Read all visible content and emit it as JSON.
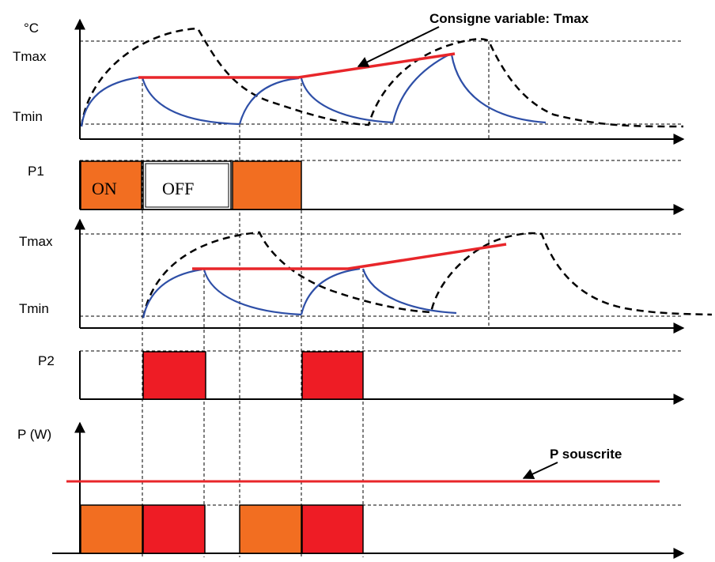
{
  "colors": {
    "on_block": "#f26e21",
    "p2_block": "#ee1c25",
    "temperature_curve": "#2e4fa7",
    "setpoint_line": "#e8262a",
    "off_block": "#ffffff"
  },
  "panel1": {
    "unit": "°C",
    "tmax_label": "Tmax",
    "tmin_label": "Tmin",
    "callout": "Consigne variable: Tmax"
  },
  "p1": {
    "label": "P1",
    "on_label": "ON",
    "off_label": "OFF"
  },
  "panel2": {
    "tmax_label": "Tmax",
    "tmin_label": "Tmin"
  },
  "p2": {
    "label": "P2"
  },
  "power": {
    "axis_label": "P (W)",
    "callout": "P souscrite"
  }
}
